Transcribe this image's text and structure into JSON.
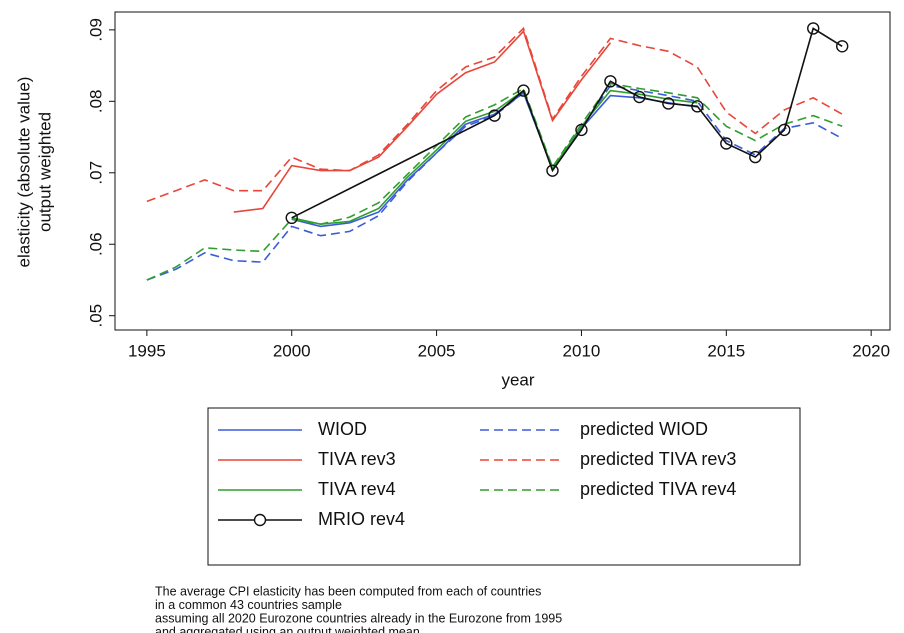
{
  "chart_data": {
    "type": "line",
    "xlabel": "year",
    "ylabel": [
      "elasticity (absolute value)",
      "output weighted"
    ],
    "xlim": [
      1993.9,
      2020.65
    ],
    "xticks": [
      1995,
      2000,
      2005,
      2010,
      2015,
      2020
    ],
    "ylim": [
      0.048,
      0.0925
    ],
    "yticks": [
      {
        "value": 0.05,
        "label": ".05"
      },
      {
        "value": 0.06,
        "label": ".06"
      },
      {
        "value": 0.07,
        "label": ".07"
      },
      {
        "value": 0.08,
        "label": ".08"
      },
      {
        "value": 0.09,
        "label": ".09"
      }
    ],
    "series": [
      {
        "name": "WIOD",
        "color": "#3b5bdb",
        "dashed": false,
        "x": [
          2000,
          2001,
          2002,
          2003,
          2004,
          2005,
          2006,
          2007,
          2008,
          2009,
          2010,
          2011,
          2012,
          2013,
          2014
        ],
        "values": [
          0.0635,
          0.0625,
          0.063,
          0.0645,
          0.069,
          0.0728,
          0.0768,
          0.0782,
          0.0812,
          0.0705,
          0.0762,
          0.0808,
          0.0805,
          0.0798,
          0.0792
        ]
      },
      {
        "name": "predicted WIOD",
        "color": "#3b5bdb",
        "dashed": true,
        "x": [
          1995,
          1996,
          1997,
          1998,
          1999,
          2000,
          2001,
          2002,
          2003,
          2004,
          2005,
          2006,
          2007,
          2008,
          2009,
          2010,
          2011,
          2012,
          2013,
          2014,
          2015,
          2016,
          2017,
          2018,
          2019
        ],
        "values": [
          0.055,
          0.0565,
          0.0588,
          0.0577,
          0.0575,
          0.0625,
          0.0612,
          0.0618,
          0.064,
          0.0688,
          0.0728,
          0.0765,
          0.078,
          0.0812,
          0.0705,
          0.0762,
          0.0822,
          0.0815,
          0.0808,
          0.08,
          0.0745,
          0.0725,
          0.0762,
          0.077,
          0.0748
        ]
      },
      {
        "name": "TIVA rev3",
        "color": "#e8463a",
        "dashed": false,
        "x": [
          1998,
          1999,
          2000,
          2001,
          2002,
          2003,
          2004,
          2005,
          2006,
          2007,
          2008,
          2009,
          2010,
          2011
        ],
        "values": [
          0.0645,
          0.065,
          0.071,
          0.0703,
          0.0703,
          0.0722,
          0.0765,
          0.081,
          0.084,
          0.0855,
          0.0898,
          0.0773,
          0.083,
          0.0882
        ]
      },
      {
        "name": "predicted TIVA rev3",
        "color": "#e8463a",
        "dashed": true,
        "x": [
          1995,
          1996,
          1997,
          1998,
          1999,
          2000,
          2001,
          2002,
          2003,
          2004,
          2005,
          2006,
          2007,
          2008,
          2009,
          2010,
          2011,
          2012,
          2013,
          2014,
          2015,
          2016,
          2017,
          2018,
          2019
        ],
        "values": [
          0.066,
          0.0675,
          0.069,
          0.0675,
          0.0675,
          0.0722,
          0.0705,
          0.0703,
          0.0725,
          0.0768,
          0.0815,
          0.0848,
          0.0862,
          0.0902,
          0.0775,
          0.0835,
          0.0888,
          0.0878,
          0.087,
          0.0848,
          0.0785,
          0.0755,
          0.0788,
          0.0805,
          0.0782
        ]
      },
      {
        "name": "TIVA rev4",
        "color": "#2f9e2f",
        "dashed": false,
        "x": [
          2000,
          2001,
          2002,
          2003,
          2004,
          2005,
          2006,
          2007,
          2008,
          2009,
          2010,
          2011,
          2012,
          2013,
          2014
        ],
        "values": [
          0.0637,
          0.0628,
          0.0632,
          0.065,
          0.0694,
          0.0732,
          0.0772,
          0.0786,
          0.0815,
          0.0706,
          0.0765,
          0.0815,
          0.081,
          0.0803,
          0.0798
        ]
      },
      {
        "name": "predicted TIVA rev4",
        "color": "#2f9e2f",
        "dashed": true,
        "x": [
          1995,
          1996,
          1997,
          1998,
          1999,
          2000,
          2001,
          2002,
          2003,
          2004,
          2005,
          2006,
          2007,
          2008,
          2009,
          2010,
          2011,
          2012,
          2013,
          2014,
          2015,
          2016,
          2017,
          2018,
          2019
        ],
        "values": [
          0.055,
          0.0568,
          0.0595,
          0.0592,
          0.059,
          0.0635,
          0.0628,
          0.0638,
          0.0658,
          0.0698,
          0.0738,
          0.0778,
          0.0795,
          0.0818,
          0.0708,
          0.0768,
          0.0825,
          0.0818,
          0.0812,
          0.0805,
          0.0765,
          0.0745,
          0.0768,
          0.078,
          0.0765
        ]
      },
      {
        "name": "MRIO rev4",
        "color": "#111111",
        "dashed": false,
        "marker": "circle",
        "x": [
          2000,
          2007,
          2008,
          2009,
          2010,
          2011,
          2012,
          2013,
          2014,
          2015,
          2016,
          2017,
          2018,
          2019
        ],
        "values": [
          0.0637,
          0.078,
          0.0815,
          0.0703,
          0.076,
          0.0828,
          0.0806,
          0.0797,
          0.0793,
          0.0741,
          0.0722,
          0.076,
          0.0902,
          0.0877
        ]
      }
    ],
    "legend": "below",
    "notes": [
      "The average CPI elasticity has been computed from each of countries",
      "in a common 43 countries sample",
      "assuming all 2020 Eurozone countries already in the Eurozone from 1995",
      "and aggregated using an output weighted mean"
    ]
  }
}
